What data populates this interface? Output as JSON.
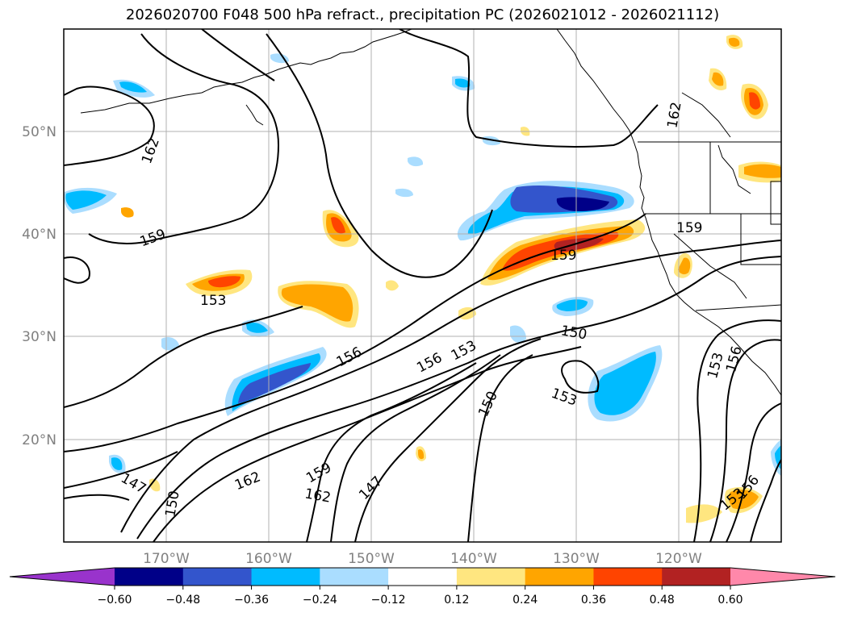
{
  "title": "2026020700 F048 500 hPa refract., precipitation PC (2026021012 - 2026021112)",
  "chart_data": {
    "type": "map-contour",
    "title": "2026020700 F048 500 hPa refract., precipitation PC (2026021012 - 2026021112)",
    "x_ticks": [
      "170°W",
      "160°W",
      "150°W",
      "140°W",
      "130°W",
      "120°W"
    ],
    "x_tick_values": [
      -170,
      -160,
      -150,
      -140,
      -130,
      -120
    ],
    "y_ticks": [
      "50°N",
      "40°N",
      "30°N",
      "20°N"
    ],
    "y_tick_values": [
      50,
      40,
      30,
      20
    ],
    "lon_range": [
      -180,
      -110
    ],
    "lat_range": [
      10,
      60
    ],
    "grid": true,
    "contour_labels": [
      "162",
      "159",
      "153",
      "156",
      "156",
      "153",
      "150",
      "150",
      "153",
      "162",
      "159",
      "162",
      "147",
      "147",
      "150",
      "162",
      "159",
      "153",
      "156",
      "153",
      "156",
      "159"
    ],
    "colorbar": {
      "ticks": [
        "−0.60",
        "−0.48",
        "−0.36",
        "−0.24",
        "−0.12",
        "0.12",
        "0.24",
        "0.36",
        "0.48",
        "0.60"
      ],
      "levels": [
        -0.6,
        -0.48,
        -0.36,
        -0.24,
        -0.12,
        0.12,
        0.24,
        0.36,
        0.48,
        0.6
      ],
      "colors": [
        "#9933cc",
        "#000088",
        "#3355cc",
        "#00bbff",
        "#aaddff",
        "#ffffff",
        "#ffe680",
        "#ffa500",
        "#ff4400",
        "#b22222",
        "#ff88aa"
      ],
      "extend": "both"
    }
  }
}
